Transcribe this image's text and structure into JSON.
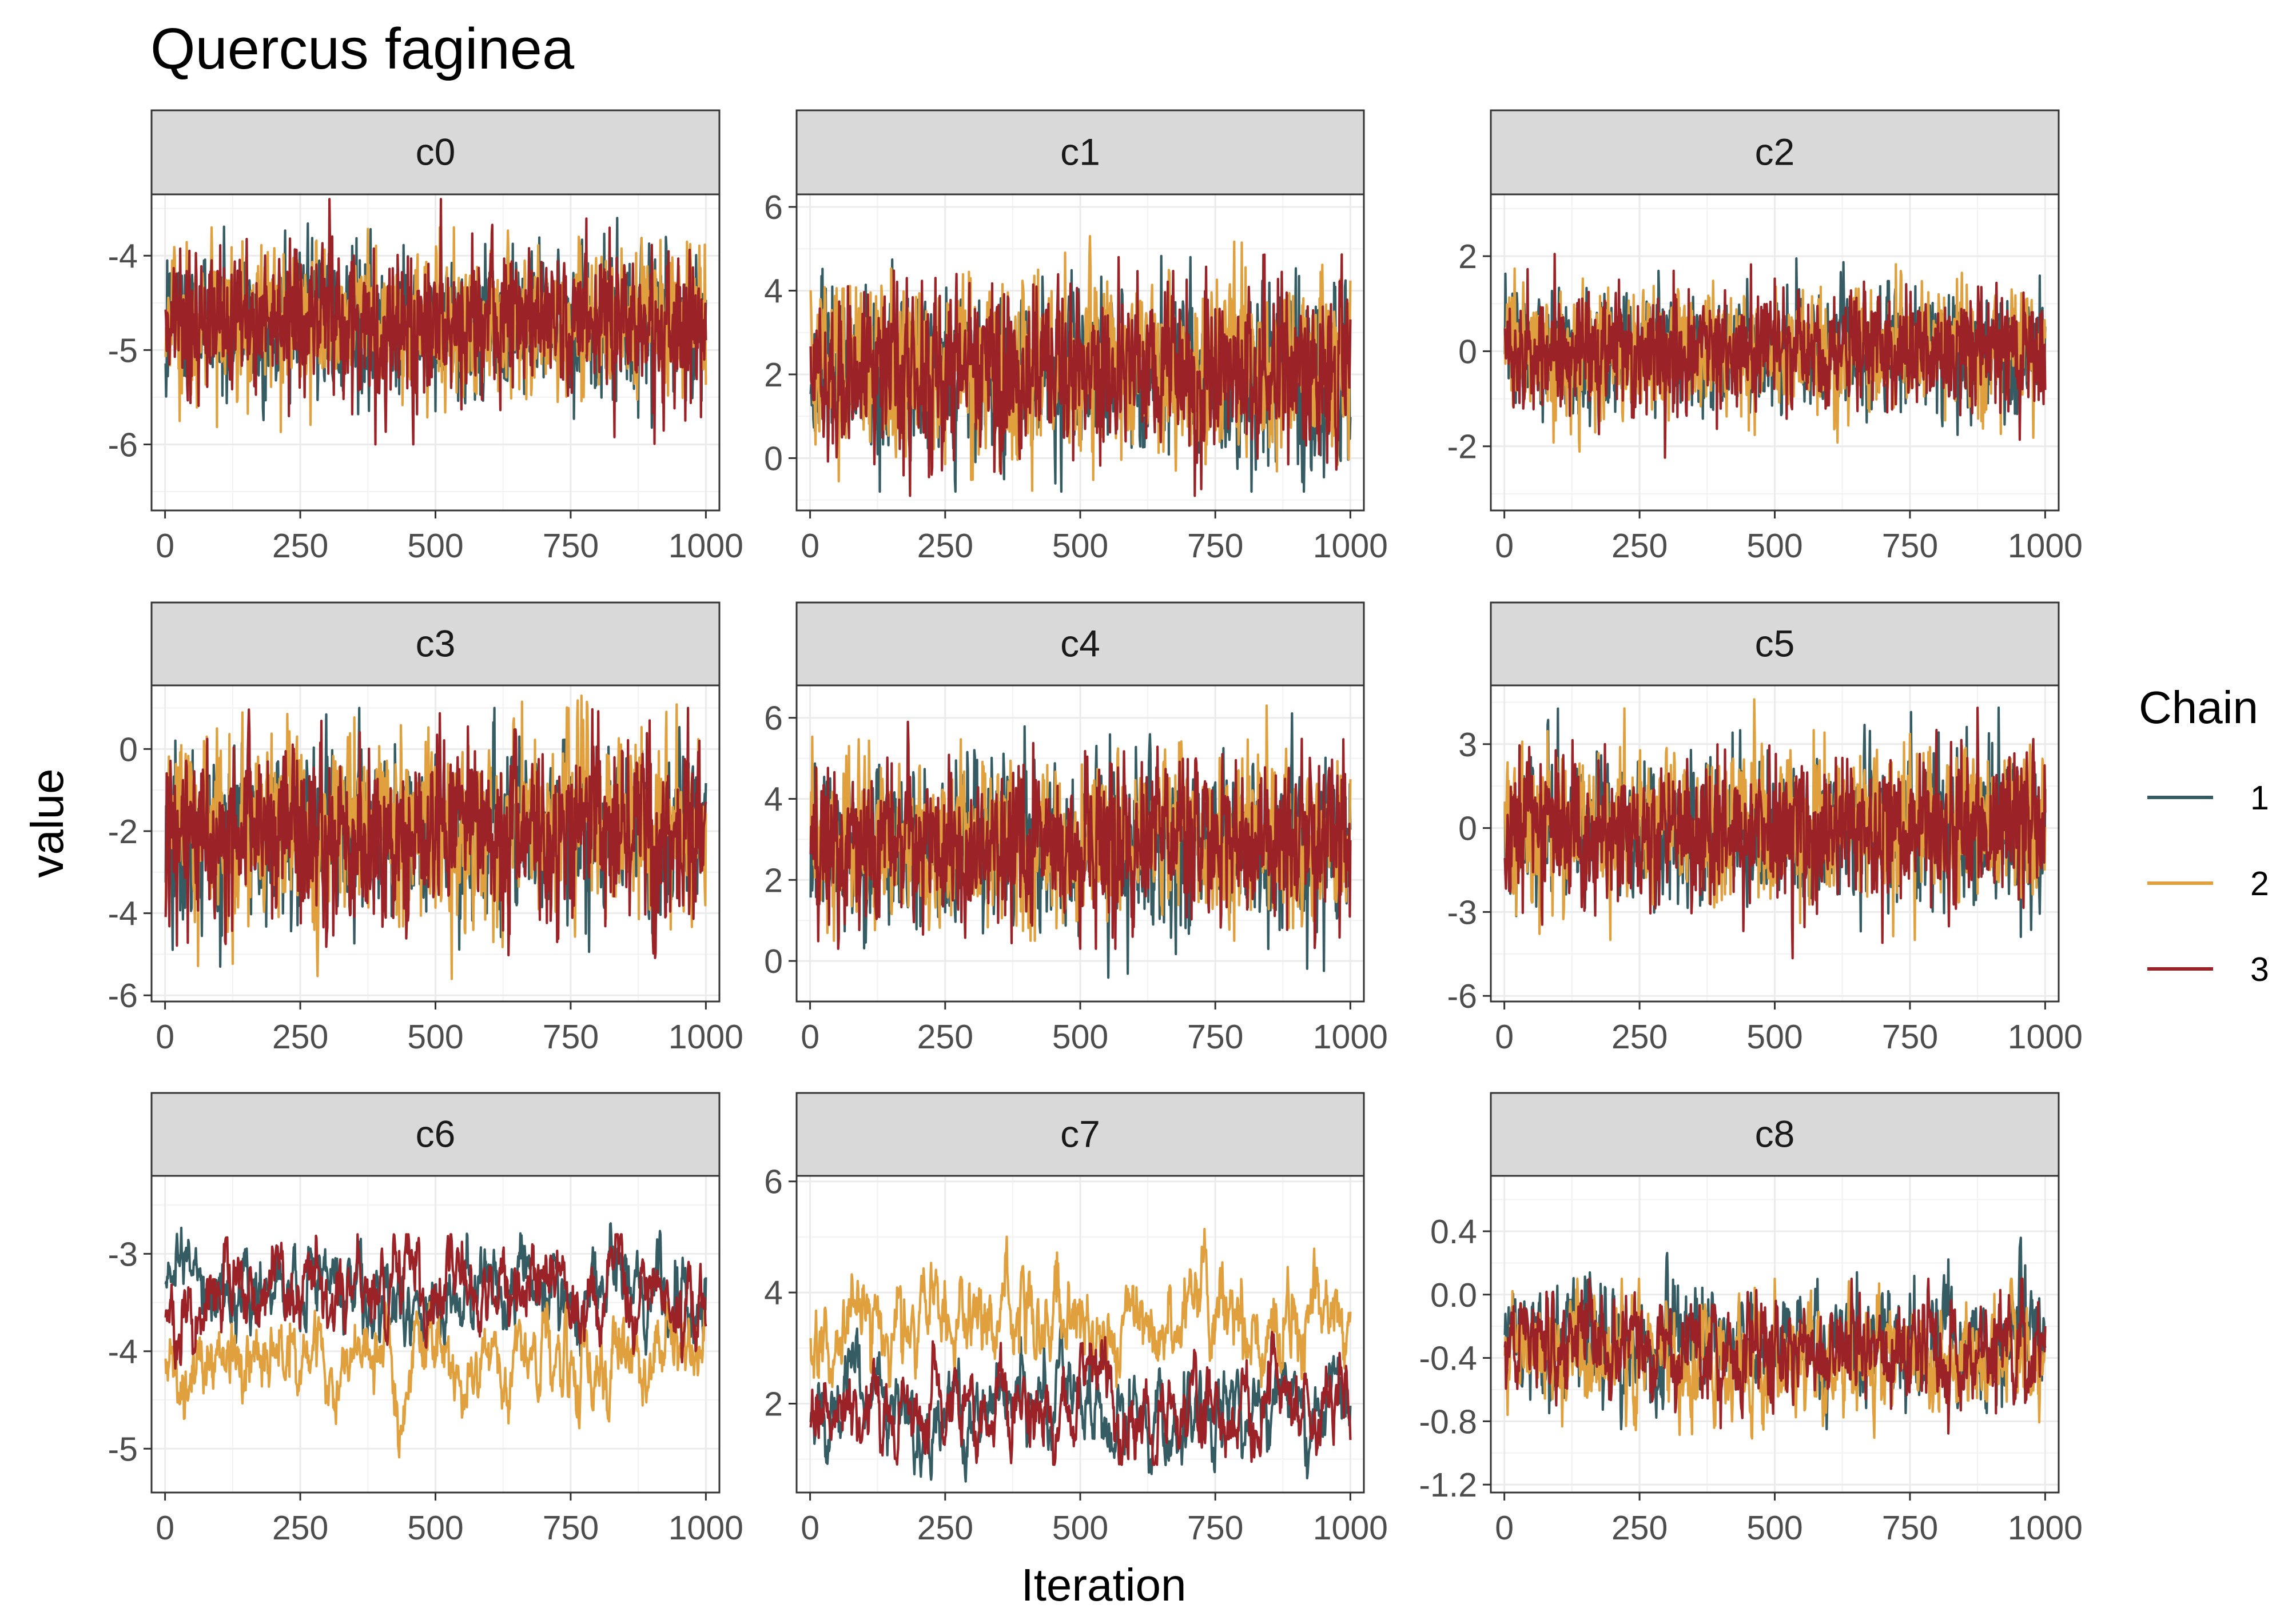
{
  "title": "Quercus faginea",
  "x_axis_title": "Iteration",
  "y_axis_title": "value",
  "legend": {
    "title": "Chain",
    "entries": [
      {
        "label": "1",
        "color": "#355B63"
      },
      {
        "label": "2",
        "color": "#E0A03E"
      },
      {
        "label": "3",
        "color": "#9B2226"
      }
    ]
  },
  "chart_data": {
    "type": "line",
    "kind": "mcmc-trace-facets",
    "title": "Quercus faginea",
    "xlabel": "Iteration",
    "ylabel": "value",
    "legend_title": "Chain",
    "legend_position": "right",
    "grid": true,
    "n_iterations": 1000,
    "x_ticks": [
      0,
      250,
      500,
      750,
      1000
    ],
    "x_tick_labels": [
      "0",
      "250",
      "500",
      "750",
      "1000"
    ],
    "xlim": [
      -25,
      1025
    ],
    "series_names": [
      "1",
      "2",
      "3"
    ],
    "series_colors": [
      "#355B63",
      "#E0A03E",
      "#9B2226"
    ],
    "panels": [
      {
        "name": "c0",
        "ylim": [
          -6.7,
          -3.35
        ],
        "y_ticks": [
          -4,
          -5,
          -6
        ],
        "y_tick_labels": [
          "-4",
          "-5",
          "-6"
        ],
        "chains": [
          {
            "mean": -4.75,
            "sd": 0.38,
            "ar": 0.2,
            "min": -6.55,
            "max": -3.6
          },
          {
            "mean": -4.7,
            "sd": 0.37,
            "ar": 0.2,
            "min": -6.2,
            "max": -3.7
          },
          {
            "mean": -4.72,
            "sd": 0.37,
            "ar": 0.2,
            "min": -6.0,
            "max": -3.4
          }
        ]
      },
      {
        "name": "c1",
        "ylim": [
          -1.25,
          6.3
        ],
        "y_ticks": [
          6,
          4,
          2,
          0
        ],
        "y_tick_labels": [
          "6",
          "4",
          "2",
          "0"
        ],
        "chains": [
          {
            "mean": 2.1,
            "sd": 1.0,
            "ar": 0.3,
            "min": -0.8,
            "max": 6.0
          },
          {
            "mean": 2.2,
            "sd": 1.05,
            "ar": 0.3,
            "min": -1.0,
            "max": 5.3
          },
          {
            "mean": 2.15,
            "sd": 1.0,
            "ar": 0.3,
            "min": -0.9,
            "max": 5.1
          }
        ]
      },
      {
        "name": "c2",
        "ylim": [
          -3.35,
          3.3
        ],
        "y_ticks": [
          2,
          0,
          -2
        ],
        "y_tick_labels": [
          "2",
          "0",
          "-2"
        ],
        "chains": [
          {
            "mean": 0.0,
            "sd": 0.6,
            "ar": 0.2,
            "min": -2.1,
            "max": 2.0
          },
          {
            "mean": 0.0,
            "sd": 0.65,
            "ar": 0.2,
            "min": -3.1,
            "max": 3.0
          },
          {
            "mean": 0.0,
            "sd": 0.6,
            "ar": 0.2,
            "min": -2.5,
            "max": 2.5
          }
        ]
      },
      {
        "name": "c3",
        "ylim": [
          -6.15,
          1.55
        ],
        "y_ticks": [
          0,
          -2,
          -4,
          -6
        ],
        "y_tick_labels": [
          "0",
          "-2",
          "-4",
          "-6"
        ],
        "chains": [
          {
            "mean": -2.0,
            "sd": 1.0,
            "ar": 0.3,
            "min": -5.3,
            "max": 1.0
          },
          {
            "mean": -1.9,
            "sd": 1.1,
            "ar": 0.3,
            "min": -5.6,
            "max": 1.3
          },
          {
            "mean": -2.0,
            "sd": 1.0,
            "ar": 0.3,
            "min": -5.8,
            "max": 1.0
          }
        ]
      },
      {
        "name": "c4",
        "ylim": [
          -1.0,
          6.8
        ],
        "y_ticks": [
          6,
          4,
          2,
          0
        ],
        "y_tick_labels": [
          "6",
          "4",
          "2",
          "0"
        ],
        "chains": [
          {
            "mean": 2.9,
            "sd": 1.0,
            "ar": 0.3,
            "min": -0.7,
            "max": 6.3
          },
          {
            "mean": 3.0,
            "sd": 1.0,
            "ar": 0.3,
            "min": 0.5,
            "max": 6.3
          },
          {
            "mean": 2.9,
            "sd": 0.95,
            "ar": 0.3,
            "min": 0.3,
            "max": 5.9
          }
        ]
      },
      {
        "name": "c5",
        "ylim": [
          -6.2,
          5.1
        ],
        "y_ticks": [
          3,
          0,
          -3,
          -6
        ],
        "y_tick_labels": [
          "3",
          "0",
          "-3",
          "-6"
        ],
        "chains": [
          {
            "mean": 0.0,
            "sd": 1.3,
            "ar": 0.25,
            "min": -4.8,
            "max": 4.6
          },
          {
            "mean": 0.1,
            "sd": 1.35,
            "ar": 0.25,
            "min": -4.0,
            "max": 4.6
          },
          {
            "mean": 0.0,
            "sd": 1.3,
            "ar": 0.25,
            "min": -5.6,
            "max": 4.3
          }
        ]
      },
      {
        "name": "c6",
        "ylim": [
          -5.45,
          -2.2
        ],
        "y_ticks": [
          -3,
          -4,
          -5
        ],
        "y_tick_labels": [
          "-3",
          "-4",
          "-5"
        ],
        "chains": [
          {
            "mean": -3.35,
            "sd": 0.25,
            "ar": 0.85,
            "min": -4.2,
            "max": -2.3
          },
          {
            "mean": -4.15,
            "sd": 0.25,
            "ar": 0.85,
            "min": -5.3,
            "max": -3.5
          },
          {
            "mean": -3.45,
            "sd": 0.25,
            "ar": 0.85,
            "min": -4.3,
            "max": -2.8
          }
        ]
      },
      {
        "name": "c7",
        "ylim": [
          0.4,
          6.1
        ],
        "y_ticks": [
          6,
          4,
          2
        ],
        "y_tick_labels": [
          "6",
          "4",
          "2"
        ],
        "chains": [
          {
            "mean": 2.0,
            "sd": 0.45,
            "ar": 0.85,
            "min": 0.6,
            "max": 3.4
          },
          {
            "mean": 3.6,
            "sd": 0.5,
            "ar": 0.85,
            "min": 2.3,
            "max": 5.85
          },
          {
            "mean": 1.95,
            "sd": 0.45,
            "ar": 0.85,
            "min": 0.9,
            "max": 3.6
          }
        ]
      },
      {
        "name": "c8",
        "ylim": [
          -1.25,
          0.75
        ],
        "y_ticks": [
          0.4,
          0.0,
          -0.4,
          -0.8,
          -1.2
        ],
        "y_tick_labels": [
          "0.4",
          "0.0",
          "-0.4",
          "-0.8",
          "-1.2"
        ],
        "chains": [
          {
            "mean": -0.3,
            "sd": 0.18,
            "ar": 0.65,
            "min": -0.85,
            "max": 0.65
          },
          {
            "mean": -0.42,
            "sd": 0.18,
            "ar": 0.65,
            "min": -1.15,
            "max": 0.1
          },
          {
            "mean": -0.35,
            "sd": 0.17,
            "ar": 0.65,
            "min": -1.0,
            "max": 0.1
          }
        ]
      }
    ]
  }
}
